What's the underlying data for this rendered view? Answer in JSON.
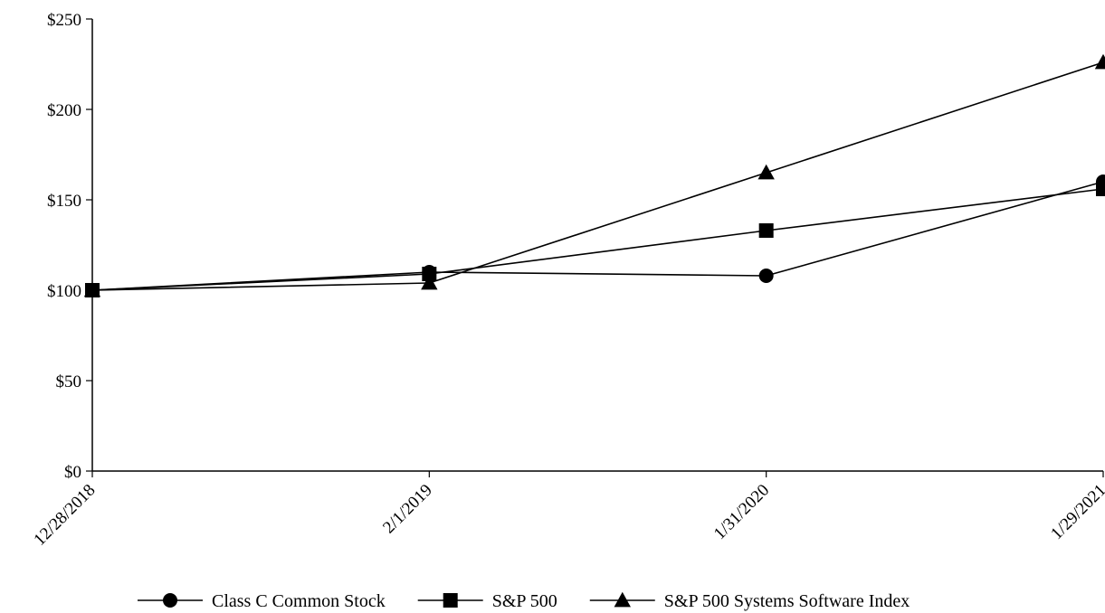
{
  "chart_data": {
    "type": "line",
    "title": "",
    "xlabel": "",
    "ylabel": "",
    "x": [
      "12/28/2018",
      "2/1/2019",
      "1/31/2020",
      "1/29/2021"
    ],
    "ylim": [
      0,
      250
    ],
    "yticks": [
      0,
      50,
      100,
      150,
      200,
      250
    ],
    "ytick_labels": [
      "$0",
      "$50",
      "$100",
      "$150",
      "$200",
      "$250"
    ],
    "grid": false,
    "legend_position": "bottom-center",
    "series": [
      {
        "name": "Class C Common Stock",
        "marker": "circle",
        "color": "#000000",
        "values": [
          100,
          110,
          108,
          160
        ]
      },
      {
        "name": "S&P 500",
        "marker": "square",
        "color": "#000000",
        "values": [
          100,
          109,
          133,
          156
        ]
      },
      {
        "name": "S&P 500 Systems Software Index",
        "marker": "triangle",
        "color": "#000000",
        "values": [
          100,
          104,
          165,
          226
        ]
      }
    ]
  }
}
